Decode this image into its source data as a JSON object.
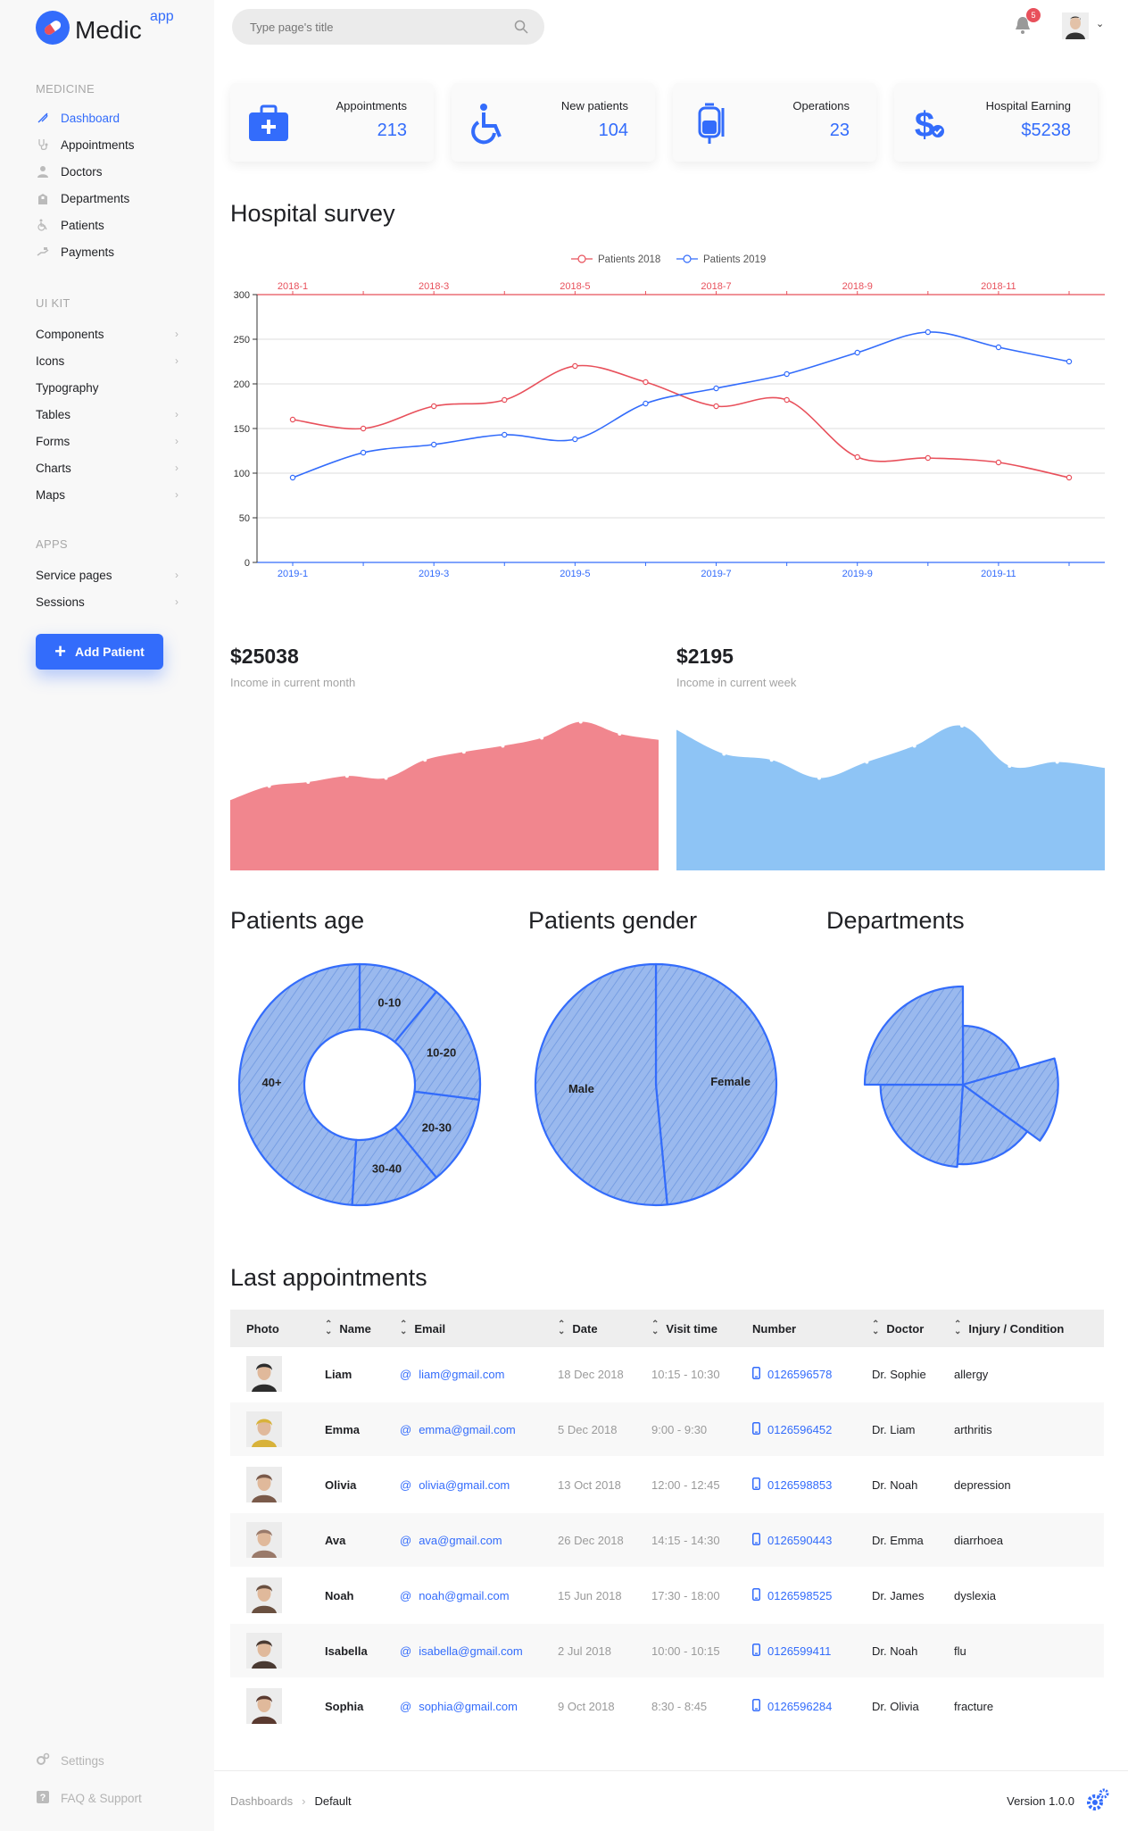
{
  "app": {
    "name": "Medic",
    "sup": "app"
  },
  "search": {
    "placeholder": "Type page's title"
  },
  "notifications": {
    "count": "5"
  },
  "sidebar": {
    "groups": [
      {
        "title": "MEDICINE",
        "items": [
          {
            "label": "Dashboard",
            "icon": "feather-icon"
          },
          {
            "label": "Appointments",
            "icon": "stethoscope-icon"
          },
          {
            "label": "Doctors",
            "icon": "doctor-icon"
          },
          {
            "label": "Departments",
            "icon": "building-icon"
          },
          {
            "label": "Patients",
            "icon": "wheelchair-icon"
          },
          {
            "label": "Payments",
            "icon": "hand-money-icon"
          }
        ]
      },
      {
        "title": "UI KIT",
        "items": [
          {
            "label": "Components"
          },
          {
            "label": "Icons"
          },
          {
            "label": "Typography"
          },
          {
            "label": "Tables"
          },
          {
            "label": "Forms"
          },
          {
            "label": "Charts"
          },
          {
            "label": "Maps"
          }
        ]
      },
      {
        "title": "APPS",
        "items": [
          {
            "label": "Service pages"
          },
          {
            "label": "Sessions"
          }
        ]
      }
    ],
    "add_button": "Add Patient",
    "settings": "Settings",
    "faq": "FAQ & Support"
  },
  "stats": [
    {
      "label": "Appointments",
      "value": "213",
      "icon": "medical-kit-icon"
    },
    {
      "label": "New patients",
      "value": "104",
      "icon": "wheelchair-icon"
    },
    {
      "label": "Operations",
      "value": "23",
      "icon": "iv-bag-icon"
    },
    {
      "label": "Hospital Earning",
      "value": "$5238",
      "icon": "dollar-icon"
    }
  ],
  "survey": {
    "title": "Hospital survey",
    "legend": [
      "Patients 2018",
      "Patients 2019"
    ],
    "colors": {
      "s2018": "#e8505b",
      "s2019": "#336cfb"
    }
  },
  "chart_data": [
    {
      "type": "line",
      "title": "Hospital survey",
      "ylim": [
        0,
        300
      ],
      "y_ticks": [
        "0",
        "50",
        "100",
        "150",
        "200",
        "250",
        "300"
      ],
      "grid": true,
      "legend_position": "top",
      "series": [
        {
          "name": "Patients 2018",
          "axis": "top",
          "x": [
            "2018-1",
            "2018-2",
            "2018-3",
            "2018-4",
            "2018-5",
            "2018-6",
            "2018-7",
            "2018-8",
            "2018-9",
            "2018-10",
            "2018-11",
            "2018-12"
          ],
          "x_tick_labels": [
            "2018-1",
            "2018-3",
            "2018-5",
            "2018-7",
            "2018-9",
            "2018-11"
          ],
          "values": [
            160,
            150,
            175,
            182,
            220,
            202,
            175,
            182,
            118,
            117,
            112,
            95
          ]
        },
        {
          "name": "Patients 2019",
          "axis": "bottom",
          "x": [
            "2019-1",
            "2019-2",
            "2019-3",
            "2019-4",
            "2019-5",
            "2019-6",
            "2019-7",
            "2019-8",
            "2019-9",
            "2019-10",
            "2019-11",
            "2019-12"
          ],
          "x_tick_labels": [
            "2019-1",
            "2019-3",
            "2019-5",
            "2019-7",
            "2019-9",
            "2019-11"
          ],
          "values": [
            95,
            123,
            132,
            143,
            138,
            178,
            195,
            211,
            235,
            258,
            241,
            225
          ]
        }
      ]
    },
    {
      "type": "area",
      "title": "$25038",
      "subtitle": "Income in current month",
      "color": "#f1868e",
      "values": [
        35,
        42,
        44,
        47,
        46,
        55,
        59,
        62,
        66,
        74,
        68,
        65
      ]
    },
    {
      "type": "area",
      "title": "$2195",
      "subtitle": "Income in current week",
      "color": "#8ec4f5",
      "values": [
        70,
        58,
        55,
        46,
        54,
        62,
        72,
        52,
        54,
        51
      ]
    },
    {
      "type": "pie",
      "title": "Patients age",
      "donut": true,
      "labels": [
        "0-10",
        "10-20",
        "20-30",
        "30-40",
        "40+"
      ],
      "values": [
        11,
        16,
        12,
        12,
        49
      ]
    },
    {
      "type": "pie",
      "title": "Patients gender",
      "labels": [
        "Female",
        "Male"
      ],
      "values": [
        48.5,
        51.5
      ]
    },
    {
      "type": "pie",
      "title": "Departments",
      "rose": true,
      "values": [
        {
          "angle": 74,
          "radius": 0.6
        },
        {
          "angle": 52,
          "radius": 0.97
        },
        {
          "angle": 58,
          "radius": 0.81
        },
        {
          "angle": 86,
          "radius": 0.84
        },
        {
          "angle": 90,
          "radius": 1.0
        }
      ]
    }
  ],
  "appointments": {
    "title": "Last appointments",
    "headers": [
      "Photo",
      "Name",
      "Email",
      "Date",
      "Visit time",
      "Number",
      "Doctor",
      "Injury / Condition"
    ],
    "rows": [
      {
        "name": "Liam",
        "email": "liam@gmail.com",
        "date": "18 Dec 2018",
        "time": "10:15 - 10:30",
        "number": "0126596578",
        "doctor": "Dr. Sophie",
        "condition": "allergy",
        "avatar": "#2d2d2d"
      },
      {
        "name": "Emma",
        "email": "emma@gmail.com",
        "date": "5 Dec 2018",
        "time": "9:00 - 9:30",
        "number": "0126596452",
        "doctor": "Dr. Liam",
        "condition": "arthritis",
        "avatar": "#d8b23a"
      },
      {
        "name": "Olivia",
        "email": "olivia@gmail.com",
        "date": "13 Oct 2018",
        "time": "12:00 - 12:45",
        "number": "0126598853",
        "doctor": "Dr. Noah",
        "condition": "depression",
        "avatar": "#7a5a4a"
      },
      {
        "name": "Ava",
        "email": "ava@gmail.com",
        "date": "26 Dec 2018",
        "time": "14:15 - 14:30",
        "number": "0126590443",
        "doctor": "Dr. Emma",
        "condition": "diarrhoea",
        "avatar": "#9a7a6a"
      },
      {
        "name": "Noah",
        "email": "noah@gmail.com",
        "date": "15 Jun 2018",
        "time": "17:30 - 18:00",
        "number": "0126598525",
        "doctor": "Dr. James",
        "condition": "dyslexia",
        "avatar": "#6a5040"
      },
      {
        "name": "Isabella",
        "email": "isabella@gmail.com",
        "date": "2 Jul 2018",
        "time": "10:00 - 10:15",
        "number": "0126599411",
        "doctor": "Dr. Noah",
        "condition": "flu",
        "avatar": "#4a3a32"
      },
      {
        "name": "Sophia",
        "email": "sophia@gmail.com",
        "date": "9 Oct 2018",
        "time": "8:30 - 8:45",
        "number": "0126596284",
        "doctor": "Dr. Olivia",
        "condition": "fracture",
        "avatar": "#5a3a30"
      }
    ]
  },
  "footer": {
    "crumb_root": "Dashboards",
    "crumb_current": "Default",
    "version": "Version 1.0.0"
  }
}
